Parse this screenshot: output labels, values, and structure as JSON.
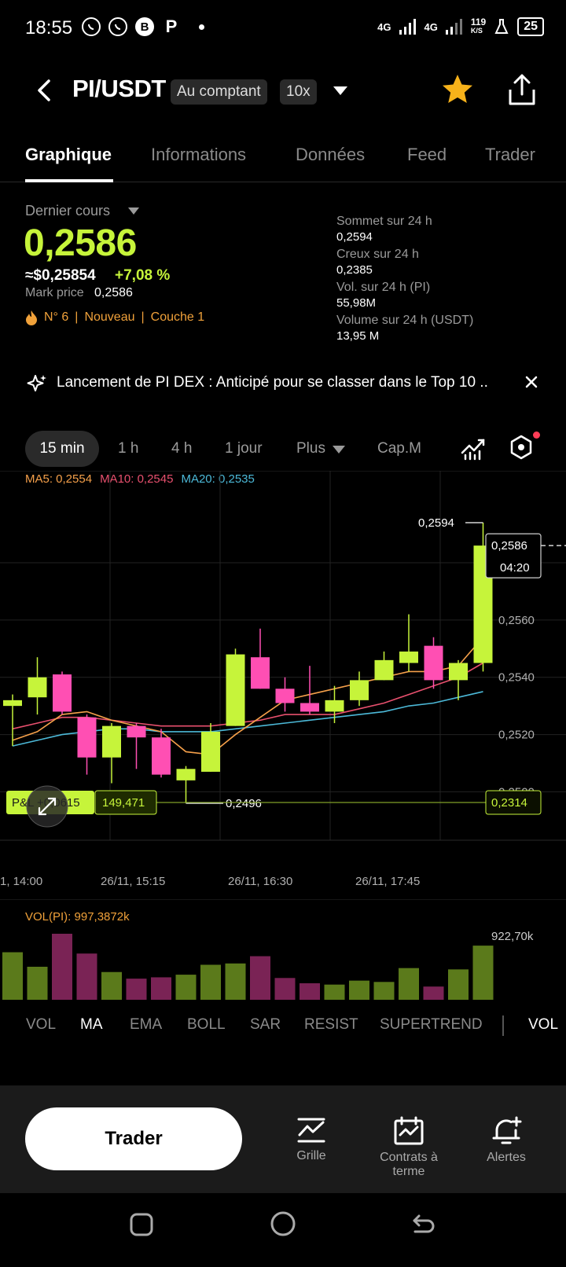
{
  "status_bar": {
    "time": "18:55",
    "app_icons": [
      "whatsapp-icon",
      "whatsapp-business-icon",
      "b-app-icon",
      "p-app-icon"
    ],
    "network1": "4G",
    "network2": "4G",
    "speed_value": "119",
    "speed_unit": "K/S",
    "battery": "25"
  },
  "header": {
    "pair": "PI/USDT",
    "market_type": "Au comptant",
    "leverage": "10x"
  },
  "tabs": [
    "Graphique",
    "Informations",
    "Données",
    "Feed",
    "Trader"
  ],
  "price": {
    "label": "Dernier cours",
    "last": "0,2586",
    "usd": "≈$0,25854",
    "change": "+7,08 %",
    "mark_label": "Mark price",
    "mark_value": "0,2586",
    "rank": "N° 6",
    "tag_new": "Nouveau",
    "tag_layer": "Couche 1",
    "sep": "|"
  },
  "stats": [
    {
      "label": "Sommet sur 24 h",
      "value": "0,2594"
    },
    {
      "label": "Creux sur 24 h",
      "value": "0,2385"
    },
    {
      "label": "Vol. sur 24 h (PI)",
      "value": "55,98M"
    },
    {
      "label": "Volume sur 24 h (USDT)",
      "value": "13,95 M"
    }
  ],
  "banner": {
    "text": "Lancement de PI DEX : Anticipé pour se classer dans le Top 10 .."
  },
  "timeframes": [
    "15 min",
    "1 h",
    "4 h",
    "1 jour",
    "Plus",
    "Cap.M"
  ],
  "ma_legend": {
    "ma5": "MA5: 0,2554",
    "ma10": "MA10: 0,2545",
    "ma20": "MA20: 0,2535"
  },
  "colors": {
    "up": "#c6f43a",
    "down": "#ff4fb3",
    "ma5": "#f5a04a",
    "ma10": "#e8506e",
    "ma20": "#4cb9d8",
    "accent": "#c6f43a"
  },
  "chart_data": {
    "type": "candlestick",
    "y_axis_ticks": [
      "0,2580",
      "0,2560",
      "0,2540",
      "0,2520",
      "0,2500"
    ],
    "ylim": [
      0.249,
      0.26
    ],
    "x_tick_labels": [
      "1, 14:00",
      "26/11, 15:15",
      "26/11, 16:30",
      "26/11, 17:45"
    ],
    "high_label": "0,2594",
    "low_label": "0,2496",
    "current_price_tag": "0,2586",
    "countdown": "04:20",
    "pnl_label": "P&L +0,0615",
    "pnl_value": "149,471",
    "liq_tag": "0,2314",
    "candles": [
      {
        "o": 0.253,
        "h": 0.2534,
        "l": 0.2516,
        "c": 0.2532
      },
      {
        "o": 0.2533,
        "h": 0.2547,
        "l": 0.2527,
        "c": 0.254
      },
      {
        "o": 0.2541,
        "h": 0.2542,
        "l": 0.2527,
        "c": 0.2528
      },
      {
        "o": 0.2526,
        "h": 0.2527,
        "l": 0.2506,
        "c": 0.2512
      },
      {
        "o": 0.2512,
        "h": 0.2524,
        "l": 0.2503,
        "c": 0.2523
      },
      {
        "o": 0.2523,
        "h": 0.2524,
        "l": 0.2508,
        "c": 0.2519
      },
      {
        "o": 0.2519,
        "h": 0.2522,
        "l": 0.2505,
        "c": 0.2506
      },
      {
        "o": 0.2504,
        "h": 0.2509,
        "l": 0.2496,
        "c": 0.2508
      },
      {
        "o": 0.2507,
        "h": 0.2524,
        "l": 0.2507,
        "c": 0.2521
      },
      {
        "o": 0.2523,
        "h": 0.255,
        "l": 0.2523,
        "c": 0.2548
      },
      {
        "o": 0.2547,
        "h": 0.2557,
        "l": 0.2536,
        "c": 0.2536
      },
      {
        "o": 0.2536,
        "h": 0.254,
        "l": 0.2528,
        "c": 0.2531
      },
      {
        "o": 0.2531,
        "h": 0.2544,
        "l": 0.2527,
        "c": 0.2528
      },
      {
        "o": 0.2528,
        "h": 0.2537,
        "l": 0.2524,
        "c": 0.2532
      },
      {
        "o": 0.2532,
        "h": 0.2542,
        "l": 0.253,
        "c": 0.2539
      },
      {
        "o": 0.2539,
        "h": 0.2549,
        "l": 0.2539,
        "c": 0.2546
      },
      {
        "o": 0.2545,
        "h": 0.2562,
        "l": 0.2542,
        "c": 0.2549
      },
      {
        "o": 0.2551,
        "h": 0.2554,
        "l": 0.2536,
        "c": 0.2539
      },
      {
        "o": 0.2539,
        "h": 0.2546,
        "l": 0.2532,
        "c": 0.2545
      },
      {
        "o": 0.2545,
        "h": 0.2594,
        "l": 0.2542,
        "c": 0.2586
      }
    ],
    "ma5": [
      0.2518,
      0.2521,
      0.2527,
      0.2528,
      0.2525,
      0.2523,
      0.2521,
      0.2514,
      0.2513,
      0.252,
      0.2526,
      0.2532,
      0.2534,
      0.2536,
      0.2538,
      0.254,
      0.2542,
      0.2542,
      0.2544,
      0.2554
    ],
    "ma10": [
      0.2522,
      0.2524,
      0.2526,
      0.2526,
      0.2525,
      0.2524,
      0.2523,
      0.2523,
      0.2523,
      0.2524,
      0.2525,
      0.2527,
      0.2527,
      0.2527,
      0.2529,
      0.2531,
      0.2534,
      0.2537,
      0.254,
      0.2545
    ],
    "ma20": [
      0.2516,
      0.2518,
      0.252,
      0.2521,
      0.2522,
      0.2522,
      0.2521,
      0.2521,
      0.2521,
      0.2522,
      0.2523,
      0.2524,
      0.2525,
      0.2526,
      0.2527,
      0.2528,
      0.253,
      0.2531,
      0.2533,
      0.2535
    ]
  },
  "volume": {
    "label": "VOL(PI): 997,3872k",
    "max_label": "922,70k",
    "bars": [
      {
        "v": 0.72,
        "up": true
      },
      {
        "v": 0.5,
        "up": true
      },
      {
        "v": 1.0,
        "up": false
      },
      {
        "v": 0.7,
        "up": false
      },
      {
        "v": 0.42,
        "up": true
      },
      {
        "v": 0.32,
        "up": false
      },
      {
        "v": 0.34,
        "up": false
      },
      {
        "v": 0.38,
        "up": true
      },
      {
        "v": 0.53,
        "up": true
      },
      {
        "v": 0.55,
        "up": true
      },
      {
        "v": 0.66,
        "up": false
      },
      {
        "v": 0.33,
        "up": false
      },
      {
        "v": 0.25,
        "up": false
      },
      {
        "v": 0.23,
        "up": true
      },
      {
        "v": 0.29,
        "up": true
      },
      {
        "v": 0.27,
        "up": true
      },
      {
        "v": 0.48,
        "up": true
      },
      {
        "v": 0.2,
        "up": false
      },
      {
        "v": 0.46,
        "up": true
      },
      {
        "v": 0.82,
        "up": true
      }
    ]
  },
  "indicator_tabs": [
    "VOL",
    "MA",
    "EMA",
    "BOLL",
    "SAR",
    "RESIST",
    "SUPERTREND",
    "VOL"
  ],
  "bottom_bar": {
    "trade": "Trader",
    "grid": "Grille",
    "futures_line1": "Contrats à",
    "futures_line2": "terme",
    "alerts": "Alertes"
  }
}
